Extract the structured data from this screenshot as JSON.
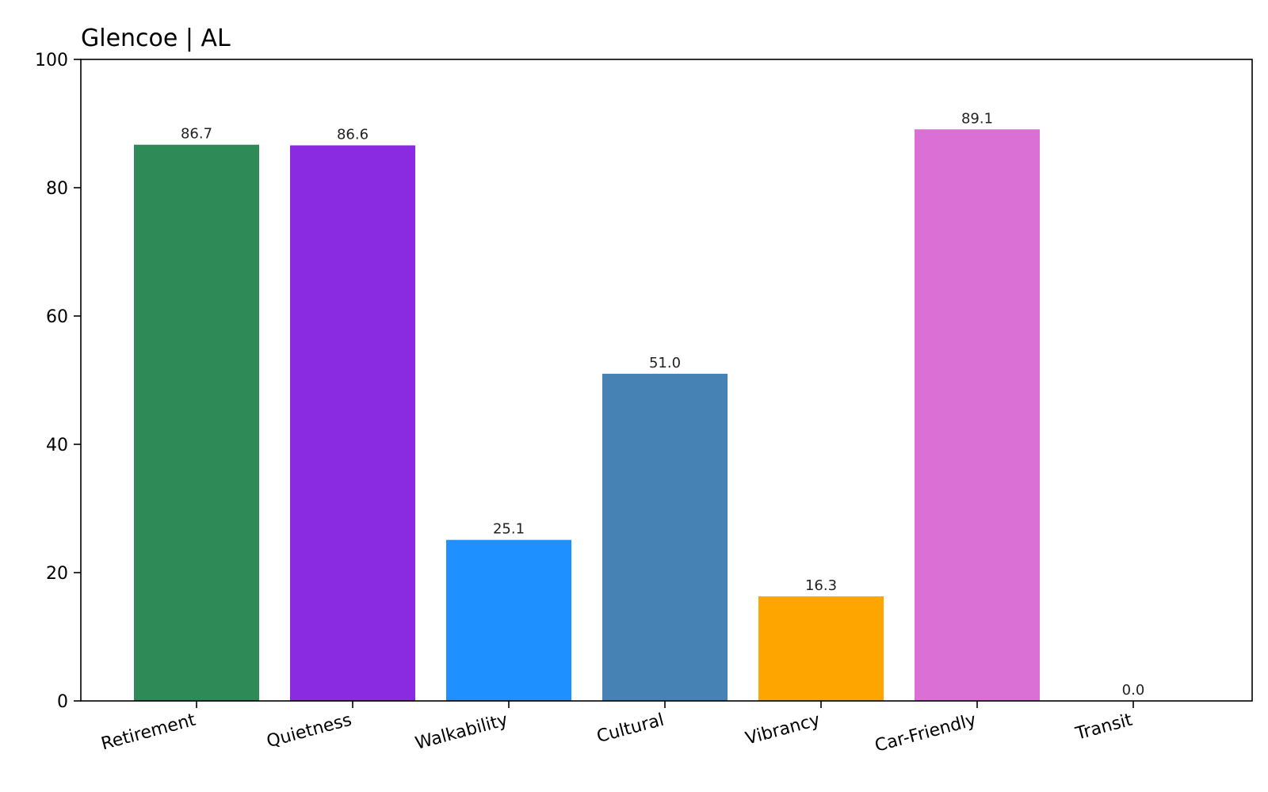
{
  "chart_data": {
    "type": "bar",
    "title": "Glencoe | AL",
    "xlabel": "",
    "ylabel": "",
    "categories": [
      "Retirement",
      "Quietness",
      "Walkability",
      "Cultural",
      "Vibrancy",
      "Car-Friendly",
      "Transit"
    ],
    "values": [
      86.7,
      86.6,
      25.1,
      51.0,
      16.3,
      89.1,
      0.0
    ],
    "value_labels": [
      "86.7",
      "86.6",
      "25.1",
      "51.0",
      "16.3",
      "89.1",
      "0.0"
    ],
    "colors": [
      "#2e8b57",
      "#8a2be2",
      "#1e90ff",
      "#4682b4",
      "#ffa500",
      "#da70d6",
      "#ffffff"
    ],
    "ylim": [
      0,
      100
    ],
    "yticks": [
      0,
      20,
      40,
      60,
      80,
      100
    ],
    "ytick_labels": [
      "0",
      "20",
      "40",
      "60",
      "80",
      "100"
    ],
    "grid": false,
    "legend": "none"
  }
}
